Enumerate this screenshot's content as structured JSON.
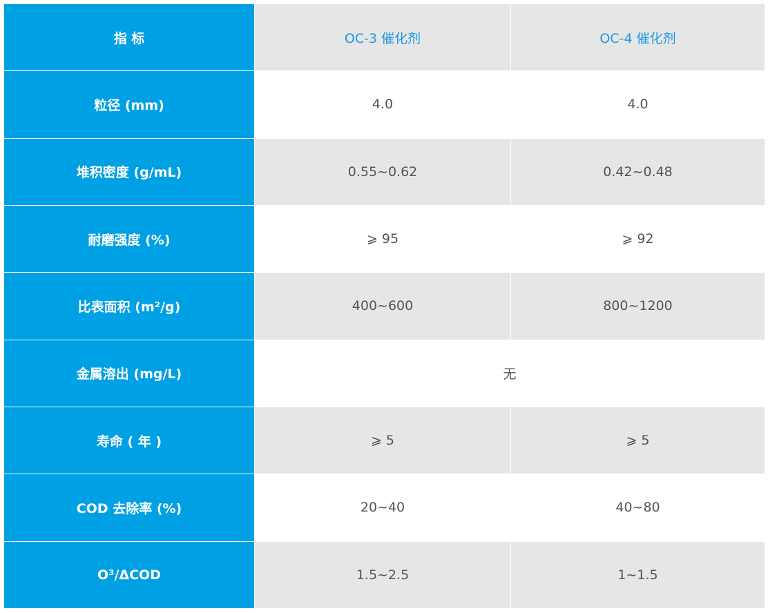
{
  "table": {
    "header": [
      "指 标",
      "OC-3 催化剂",
      "OC-4 催化剂"
    ],
    "rows": [
      [
        "粒径 (mm)",
        "4.0",
        "4.0"
      ],
      [
        "堆积密度 (g/mL)",
        "0.55~0.62",
        "0.42~0.48"
      ],
      [
        "耐磨强度 (%)",
        "⩾ 95",
        "⩾ 92"
      ],
      [
        "比表面积 (m²/g)",
        "400~600",
        "800~1200"
      ],
      [
        "金属溶出 (mg/L)",
        "无"
      ],
      [
        "寿命 ( 年 )",
        "⩾ 5",
        "⩾ 5"
      ],
      [
        "COD 去除率 (%)",
        "20~40",
        "40~80"
      ],
      [
        "O³/ΔCOD",
        "1.5~2.5",
        "1~1.5"
      ]
    ]
  }
}
